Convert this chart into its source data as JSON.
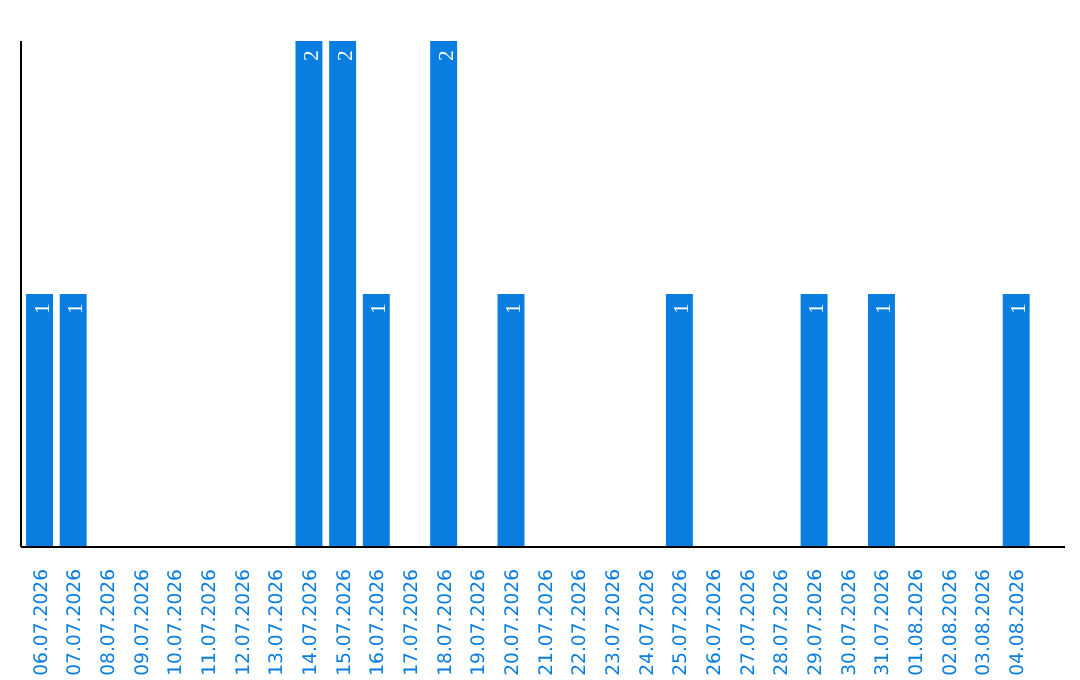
{
  "chart_data": {
    "type": "bar",
    "categories": [
      "06.07.2026",
      "07.07.2026",
      "08.07.2026",
      "09.07.2026",
      "10.07.2026",
      "11.07.2026",
      "12.07.2026",
      "13.07.2026",
      "14.07.2026",
      "15.07.2026",
      "16.07.2026",
      "17.07.2026",
      "18.07.2026",
      "19.07.2026",
      "20.07.2026",
      "21.07.2026",
      "22.07.2026",
      "23.07.2026",
      "24.07.2026",
      "25.07.2026",
      "26.07.2026",
      "27.07.2026",
      "28.07.2026",
      "29.07.2026",
      "30.07.2026",
      "31.07.2026",
      "01.08.2026",
      "02.08.2026",
      "03.08.2026",
      "04.08.2026"
    ],
    "values": [
      1,
      1,
      0,
      0,
      0,
      0,
      0,
      0,
      2,
      2,
      1,
      0,
      2,
      0,
      1,
      0,
      0,
      0,
      0,
      1,
      0,
      0,
      0,
      1,
      0,
      1,
      0,
      0,
      0,
      1
    ],
    "value_labels": [
      "1",
      "1",
      null,
      null,
      null,
      null,
      null,
      null,
      "2",
      "2",
      "1",
      null,
      "2",
      null,
      "1",
      null,
      null,
      null,
      null,
      "1",
      null,
      null,
      null,
      "1",
      null,
      "1",
      null,
      null,
      null,
      "1"
    ],
    "color": "#0a7ee0",
    "grid": false,
    "tick_labels": "x"
  }
}
